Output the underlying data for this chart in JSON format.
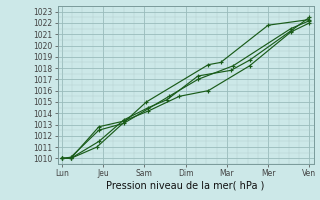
{
  "title": "Pression niveau de la mer( hPa )",
  "ylabel_values": [
    1010,
    1011,
    1012,
    1013,
    1014,
    1015,
    1016,
    1017,
    1018,
    1019,
    1020,
    1021,
    1022,
    1023
  ],
  "x_labels": [
    "Lun",
    "Jeu",
    "Sam",
    "Dim",
    "Mar",
    "Mer",
    "Ven"
  ],
  "x_positions": [
    0,
    1,
    2,
    3,
    4,
    5,
    6
  ],
  "ylim": [
    1009.5,
    1023.5
  ],
  "xlim": [
    -0.1,
    6.1
  ],
  "bg_color": "#cce8e8",
  "grid_major_color": "#99bbbb",
  "grid_minor_color": "#b3cccc",
  "line_color": "#1a5c1a",
  "series_x": [
    [
      0.0,
      0.22,
      0.85,
      2.05,
      3.55,
      3.85,
      5.0,
      6.0
    ],
    [
      0.0,
      0.22,
      0.9,
      1.5,
      2.6,
      3.3,
      4.15,
      5.55,
      6.0
    ],
    [
      0.0,
      0.22,
      0.9,
      1.5,
      2.1,
      2.85,
      3.55,
      4.55,
      5.55,
      6.0
    ],
    [
      0.0,
      0.22,
      0.9,
      1.5,
      2.1,
      2.55,
      3.3,
      4.1,
      4.55,
      5.55,
      6.0
    ]
  ],
  "series_y": [
    [
      1010.0,
      1010.0,
      1011.0,
      1015.0,
      1018.3,
      1018.5,
      1021.8,
      1022.3
    ],
    [
      1010.0,
      1010.1,
      1012.5,
      1013.1,
      1015.5,
      1017.0,
      1018.2,
      1021.5,
      1022.2
    ],
    [
      1010.0,
      1010.0,
      1012.8,
      1013.3,
      1014.2,
      1015.5,
      1016.0,
      1018.2,
      1021.2,
      1022.0
    ],
    [
      1010.0,
      1010.0,
      1011.5,
      1013.4,
      1014.5,
      1015.2,
      1017.3,
      1017.8,
      1018.7,
      1021.3,
      1022.5
    ]
  ],
  "title_fontsize": 7,
  "tick_fontsize": 5.5
}
